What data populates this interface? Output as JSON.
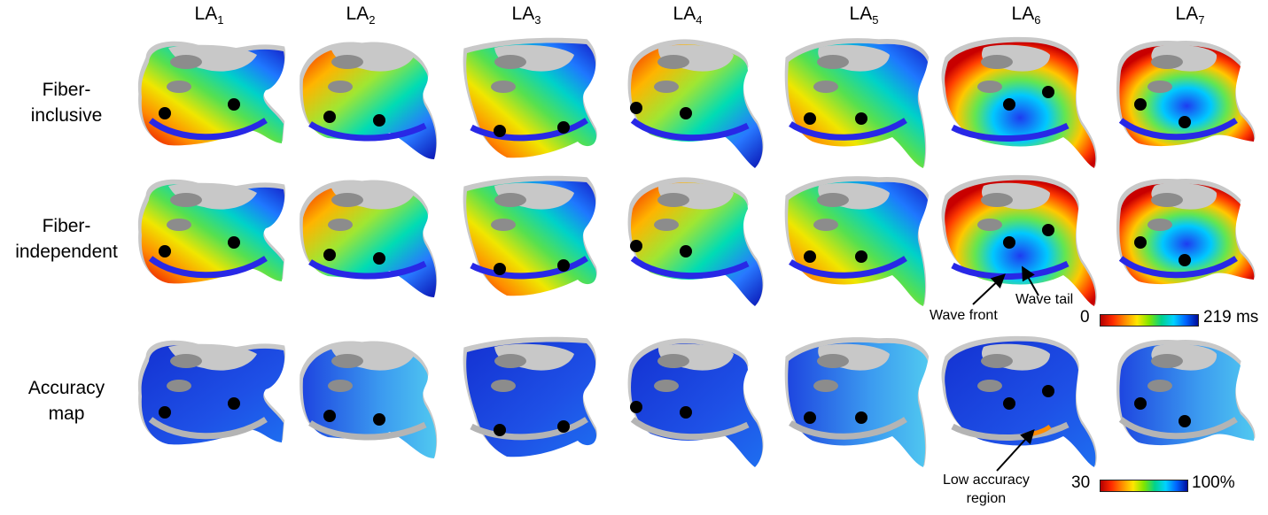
{
  "columns": [
    {
      "base": "LA",
      "sub": "1"
    },
    {
      "base": "LA",
      "sub": "2"
    },
    {
      "base": "LA",
      "sub": "3"
    },
    {
      "base": "LA",
      "sub": "4"
    },
    {
      "base": "LA",
      "sub": "5"
    },
    {
      "base": "LA",
      "sub": "6"
    },
    {
      "base": "LA",
      "sub": "7"
    }
  ],
  "rows": [
    {
      "line1": "Fiber-",
      "line2": "inclusive"
    },
    {
      "line1": "Fiber-",
      "line2": "independent"
    },
    {
      "line1": "Accuracy",
      "line2": "map"
    }
  ],
  "annotations": {
    "wave_front": "Wave front",
    "wave_tail": "Wave tail",
    "low_accuracy_1": "Low accuracy",
    "low_accuracy_2": "region"
  },
  "colorbars": {
    "activation": {
      "min": "0",
      "max": "219 ms"
    },
    "accuracy": {
      "min": "30",
      "max": "100%"
    }
  },
  "colors": {
    "tissue_gray": "#c8c8c8",
    "vein_gray": "#8c8c8c",
    "accuracy_blue": "#1e3cdc",
    "marker": "#000000"
  }
}
